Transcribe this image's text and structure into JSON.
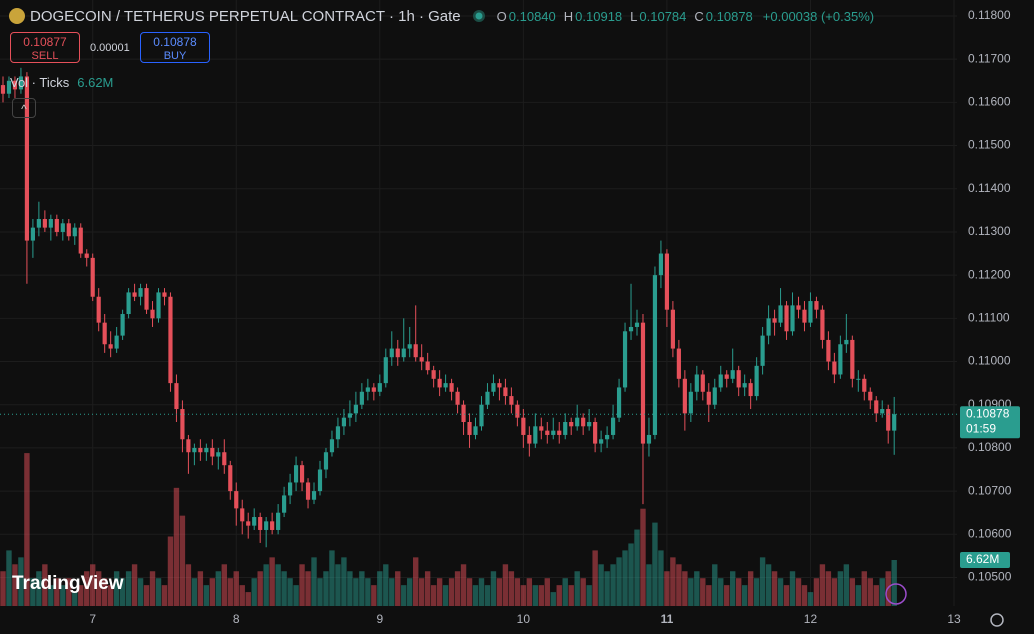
{
  "chart_data": {
    "type": "candlestick",
    "title": "DOGECOIN / TETHERUS PERPETUAL CONTRACT · 1h · Gate",
    "ohlc_legend": [
      {
        "key": "O",
        "value": "0.10840"
      },
      {
        "key": "H",
        "value": "0.10918"
      },
      {
        "key": "L",
        "value": "0.10784"
      },
      {
        "key": "C",
        "value": "0.10878"
      }
    ],
    "change": "+0.00038 (+0.35%)",
    "sell": {
      "price": "0.10877",
      "label": "SELL"
    },
    "spread": "0.00001",
    "buy": {
      "price": "0.10878",
      "label": "BUY"
    },
    "volume_title": "Vol · Ticks",
    "volume_label": "6.62M",
    "last_price_label": "0.10878",
    "countdown": "01:59",
    "watermark": "TradingView",
    "up_color": "#2a9d8f",
    "down_color": "#e5505a",
    "xlim": [
      -0.5,
      159.5
    ],
    "xticks": [
      {
        "value": 15,
        "label": "7"
      },
      {
        "value": 39,
        "label": "8"
      },
      {
        "value": 63,
        "label": "9"
      },
      {
        "value": 87,
        "label": "10"
      },
      {
        "value": 111,
        "label": "11"
      },
      {
        "value": 135,
        "label": "12"
      },
      {
        "value": 159,
        "label": "13"
      }
    ],
    "ylim": [
      0.10434,
      0.11837
    ],
    "yticks": [
      {
        "value": 0.118,
        "label": "0.11800"
      },
      {
        "value": 0.117,
        "label": "0.11700"
      },
      {
        "value": 0.116,
        "label": "0.11600"
      },
      {
        "value": 0.115,
        "label": "0.11500"
      },
      {
        "value": 0.114,
        "label": "0.11400"
      },
      {
        "value": 0.113,
        "label": "0.11300"
      },
      {
        "value": 0.112,
        "label": "0.11200"
      },
      {
        "value": 0.111,
        "label": "0.11100"
      },
      {
        "value": 0.11,
        "label": "0.11000"
      },
      {
        "value": 0.109,
        "label": "0.10900"
      },
      {
        "value": 0.108,
        "label": "0.10800"
      },
      {
        "value": 0.107,
        "label": "0.10700"
      },
      {
        "value": 0.106,
        "label": "0.10600"
      },
      {
        "value": 0.105,
        "label": "0.10500"
      }
    ],
    "grid": true,
    "ohlc": [
      [
        0.1164,
        0.1166,
        0.116,
        0.1162
      ],
      [
        0.1162,
        0.1166,
        0.1161,
        0.1165
      ],
      [
        0.1165,
        0.1166,
        0.1161,
        0.1163
      ],
      [
        0.1163,
        0.1168,
        0.1162,
        0.1166
      ],
      [
        0.1166,
        0.1167,
        0.1118,
        0.1128
      ],
      [
        0.1128,
        0.1133,
        0.1124,
        0.1131
      ],
      [
        0.1131,
        0.1137,
        0.1129,
        0.1133
      ],
      [
        0.1133,
        0.1135,
        0.113,
        0.1131
      ],
      [
        0.1131,
        0.1134,
        0.1128,
        0.1133
      ],
      [
        0.1133,
        0.1134,
        0.1129,
        0.113
      ],
      [
        0.113,
        0.1133,
        0.1128,
        0.1132
      ],
      [
        0.1132,
        0.1133,
        0.1128,
        0.1129
      ],
      [
        0.1129,
        0.1132,
        0.1127,
        0.1131
      ],
      [
        0.1131,
        0.1132,
        0.1124,
        0.1125
      ],
      [
        0.1125,
        0.1126,
        0.1122,
        0.1124
      ],
      [
        0.1124,
        0.1125,
        0.1114,
        0.1115
      ],
      [
        0.1115,
        0.1117,
        0.1107,
        0.1109
      ],
      [
        0.1109,
        0.1111,
        0.1102,
        0.1104
      ],
      [
        0.1104,
        0.1107,
        0.1101,
        0.1103
      ],
      [
        0.1103,
        0.1108,
        0.1102,
        0.1106
      ],
      [
        0.1106,
        0.1112,
        0.1105,
        0.1111
      ],
      [
        0.1111,
        0.1117,
        0.111,
        0.1116
      ],
      [
        0.1116,
        0.1118,
        0.1114,
        0.1115
      ],
      [
        0.1115,
        0.1118,
        0.1113,
        0.1117
      ],
      [
        0.1117,
        0.1118,
        0.1111,
        0.1112
      ],
      [
        0.1112,
        0.1114,
        0.1108,
        0.111
      ],
      [
        0.111,
        0.1117,
        0.1109,
        0.1116
      ],
      [
        0.1116,
        0.1117,
        0.1113,
        0.1115
      ],
      [
        0.1115,
        0.1116,
        0.1093,
        0.1095
      ],
      [
        0.1095,
        0.1097,
        0.1086,
        0.1089
      ],
      [
        0.1089,
        0.1091,
        0.1079,
        0.1082
      ],
      [
        0.1082,
        0.1083,
        0.1074,
        0.1079
      ],
      [
        0.1079,
        0.1081,
        0.1076,
        0.108
      ],
      [
        0.108,
        0.1082,
        0.1077,
        0.1079
      ],
      [
        0.1079,
        0.1081,
        0.1077,
        0.108
      ],
      [
        0.108,
        0.1082,
        0.1076,
        0.1078
      ],
      [
        0.1078,
        0.108,
        0.1075,
        0.1079
      ],
      [
        0.1079,
        0.1082,
        0.1074,
        0.1076
      ],
      [
        0.1076,
        0.1077,
        0.1068,
        0.107
      ],
      [
        0.107,
        0.1072,
        0.1062,
        0.1066
      ],
      [
        0.1066,
        0.1068,
        0.106,
        0.1063
      ],
      [
        0.1063,
        0.1065,
        0.1059,
        0.1062
      ],
      [
        0.1062,
        0.1066,
        0.1061,
        0.1064
      ],
      [
        0.1064,
        0.1065,
        0.1058,
        0.1061
      ],
      [
        0.1061,
        0.1064,
        0.1057,
        0.1063
      ],
      [
        0.1063,
        0.1065,
        0.106,
        0.1061
      ],
      [
        0.1061,
        0.1067,
        0.106,
        0.1065
      ],
      [
        0.1065,
        0.1071,
        0.1064,
        0.1069
      ],
      [
        0.1069,
        0.1074,
        0.1067,
        0.1072
      ],
      [
        0.1072,
        0.1078,
        0.107,
        0.1076
      ],
      [
        0.1076,
        0.1077,
        0.107,
        0.1072
      ],
      [
        0.1072,
        0.1073,
        0.1066,
        0.1068
      ],
      [
        0.1068,
        0.1072,
        0.1067,
        0.107
      ],
      [
        0.107,
        0.1077,
        0.1069,
        0.1075
      ],
      [
        0.1075,
        0.108,
        0.1073,
        0.1079
      ],
      [
        0.1079,
        0.1084,
        0.1078,
        0.1082
      ],
      [
        0.1082,
        0.1087,
        0.108,
        0.1085
      ],
      [
        0.1085,
        0.1089,
        0.1083,
        0.1087
      ],
      [
        0.1087,
        0.1091,
        0.1085,
        0.1088
      ],
      [
        0.1088,
        0.1093,
        0.1086,
        0.109
      ],
      [
        0.109,
        0.1095,
        0.1089,
        0.1093
      ],
      [
        0.1093,
        0.1096,
        0.1091,
        0.1094
      ],
      [
        0.1094,
        0.1095,
        0.1091,
        0.1093
      ],
      [
        0.1093,
        0.1097,
        0.1092,
        0.1095
      ],
      [
        0.1095,
        0.1103,
        0.1094,
        0.1101
      ],
      [
        0.1101,
        0.1107,
        0.1099,
        0.1103
      ],
      [
        0.1103,
        0.1105,
        0.1099,
        0.1101
      ],
      [
        0.1101,
        0.111,
        0.11,
        0.1103
      ],
      [
        0.1103,
        0.1108,
        0.1101,
        0.1104
      ],
      [
        0.1104,
        0.1113,
        0.11,
        0.1101
      ],
      [
        0.1101,
        0.1104,
        0.1098,
        0.11
      ],
      [
        0.11,
        0.1102,
        0.1097,
        0.1098
      ],
      [
        0.1098,
        0.1099,
        0.1094,
        0.1096
      ],
      [
        0.1096,
        0.1098,
        0.1092,
        0.1094
      ],
      [
        0.1094,
        0.1097,
        0.1093,
        0.1095
      ],
      [
        0.1095,
        0.1096,
        0.1091,
        0.1093
      ],
      [
        0.1093,
        0.1094,
        0.1088,
        0.109
      ],
      [
        0.109,
        0.1091,
        0.1083,
        0.1086
      ],
      [
        0.1086,
        0.1088,
        0.108,
        0.1083
      ],
      [
        0.1083,
        0.1087,
        0.1082,
        0.1085
      ],
      [
        0.1085,
        0.1092,
        0.1084,
        0.109
      ],
      [
        0.109,
        0.1095,
        0.1089,
        0.1093
      ],
      [
        0.1093,
        0.1097,
        0.1092,
        0.1095
      ],
      [
        0.1095,
        0.1096,
        0.1091,
        0.1094
      ],
      [
        0.1094,
        0.1096,
        0.109,
        0.1092
      ],
      [
        0.1092,
        0.1094,
        0.1088,
        0.109
      ],
      [
        0.109,
        0.1091,
        0.1085,
        0.1087
      ],
      [
        0.1087,
        0.1089,
        0.108,
        0.1083
      ],
      [
        0.1083,
        0.1085,
        0.1078,
        0.1081
      ],
      [
        0.1081,
        0.1088,
        0.108,
        0.1085
      ],
      [
        0.1085,
        0.1087,
        0.1082,
        0.1084
      ],
      [
        0.1084,
        0.1086,
        0.1081,
        0.1083
      ],
      [
        0.1083,
        0.1087,
        0.1082,
        0.1084
      ],
      [
        0.1084,
        0.1086,
        0.1081,
        0.1083
      ],
      [
        0.1083,
        0.1088,
        0.1082,
        0.1086
      ],
      [
        0.1086,
        0.1087,
        0.1083,
        0.1085
      ],
      [
        0.1085,
        0.109,
        0.1084,
        0.1087
      ],
      [
        0.1087,
        0.1088,
        0.1083,
        0.1085
      ],
      [
        0.1085,
        0.1089,
        0.1084,
        0.1086
      ],
      [
        0.1086,
        0.1087,
        0.1079,
        0.1081
      ],
      [
        0.1081,
        0.1084,
        0.1079,
        0.1082
      ],
      [
        0.1082,
        0.1085,
        0.108,
        0.1083
      ],
      [
        0.1083,
        0.109,
        0.1082,
        0.1087
      ],
      [
        0.1087,
        0.1096,
        0.1086,
        0.1094
      ],
      [
        0.1094,
        0.1109,
        0.1093,
        0.1107
      ],
      [
        0.1107,
        0.1118,
        0.1105,
        0.1108
      ],
      [
        0.1108,
        0.1112,
        0.1106,
        0.1109
      ],
      [
        0.1109,
        0.1111,
        0.1067,
        0.1081
      ],
      [
        0.1081,
        0.1087,
        0.1078,
        0.1083
      ],
      [
        0.1083,
        0.1122,
        0.1082,
        0.112
      ],
      [
        0.112,
        0.1128,
        0.1117,
        0.1125
      ],
      [
        0.1125,
        0.1126,
        0.1108,
        0.1112
      ],
      [
        0.1112,
        0.1114,
        0.1101,
        0.1103
      ],
      [
        0.1103,
        0.1105,
        0.1094,
        0.1096
      ],
      [
        0.1096,
        0.1098,
        0.1084,
        0.1088
      ],
      [
        0.1088,
        0.1095,
        0.1086,
        0.1093
      ],
      [
        0.1093,
        0.1099,
        0.1091,
        0.1097
      ],
      [
        0.1097,
        0.1098,
        0.1091,
        0.1093
      ],
      [
        0.1093,
        0.1095,
        0.1086,
        0.109
      ],
      [
        0.109,
        0.1096,
        0.1089,
        0.1094
      ],
      [
        0.1094,
        0.1099,
        0.1093,
        0.1097
      ],
      [
        0.1097,
        0.1098,
        0.1094,
        0.1096
      ],
      [
        0.1096,
        0.1103,
        0.1095,
        0.1098
      ],
      [
        0.1098,
        0.1099,
        0.1092,
        0.1094
      ],
      [
        0.1094,
        0.1097,
        0.1092,
        0.1095
      ],
      [
        0.1095,
        0.1096,
        0.1089,
        0.1092
      ],
      [
        0.1092,
        0.1101,
        0.1091,
        0.1099
      ],
      [
        0.1099,
        0.1108,
        0.1097,
        0.1106
      ],
      [
        0.1106,
        0.1113,
        0.1104,
        0.111
      ],
      [
        0.111,
        0.1112,
        0.1106,
        0.1109
      ],
      [
        0.1109,
        0.1117,
        0.1108,
        0.1113
      ],
      [
        0.1113,
        0.1114,
        0.1105,
        0.1107
      ],
      [
        0.1107,
        0.1116,
        0.1106,
        0.1113
      ],
      [
        0.1113,
        0.1115,
        0.111,
        0.1112
      ],
      [
        0.1112,
        0.1114,
        0.1107,
        0.1109
      ],
      [
        0.1109,
        0.1116,
        0.1108,
        0.1114
      ],
      [
        0.1114,
        0.1115,
        0.111,
        0.1112
      ],
      [
        0.1112,
        0.1113,
        0.1103,
        0.1105
      ],
      [
        0.1105,
        0.1107,
        0.1098,
        0.11
      ],
      [
        0.11,
        0.1102,
        0.1095,
        0.1097
      ],
      [
        0.1097,
        0.1106,
        0.1096,
        0.1104
      ],
      [
        0.1104,
        0.1111,
        0.1102,
        0.1105
      ],
      [
        0.1105,
        0.1106,
        0.1094,
        0.1096
      ],
      [
        0.1096,
        0.1098,
        0.1093,
        0.1096
      ],
      [
        0.1096,
        0.1097,
        0.1091,
        0.1093
      ],
      [
        0.1093,
        0.1094,
        0.1089,
        0.1091
      ],
      [
        0.1091,
        0.1092,
        0.1086,
        0.1088
      ],
      [
        0.1088,
        0.1091,
        0.1087,
        0.1089
      ],
      [
        0.1089,
        0.109,
        0.1081,
        0.1084
      ],
      [
        0.1084,
        0.10918,
        0.10784,
        0.10878
      ]
    ],
    "volume": [
      5,
      8,
      6,
      7,
      22,
      4,
      5,
      6,
      3,
      4,
      3,
      4,
      2,
      3,
      5,
      6,
      5,
      4,
      3,
      5,
      4,
      5,
      6,
      4,
      3,
      5,
      4,
      3,
      10,
      17,
      13,
      6,
      4,
      5,
      3,
      4,
      5,
      6,
      4,
      5,
      3,
      2,
      4,
      5,
      6,
      7,
      6,
      5,
      4,
      3,
      6,
      5,
      7,
      4,
      5,
      8,
      6,
      7,
      5,
      4,
      5,
      4,
      3,
      5,
      6,
      4,
      5,
      3,
      4,
      7,
      4,
      5,
      3,
      4,
      3,
      4,
      5,
      6,
      4,
      3,
      4,
      3,
      5,
      4,
      6,
      5,
      4,
      3,
      4,
      3,
      3,
      4,
      2,
      3,
      4,
      3,
      5,
      4,
      3,
      8,
      6,
      5,
      6,
      7,
      8,
      9,
      11,
      14,
      6,
      12,
      8,
      5,
      7,
      6,
      5,
      4,
      5,
      4,
      3,
      6,
      4,
      3,
      5,
      4,
      3,
      5,
      4,
      7,
      6,
      5,
      4,
      3,
      5,
      4,
      3,
      2,
      4,
      6,
      5,
      4,
      5,
      6,
      4,
      3,
      5,
      4,
      3,
      4,
      5,
      6.62
    ]
  }
}
